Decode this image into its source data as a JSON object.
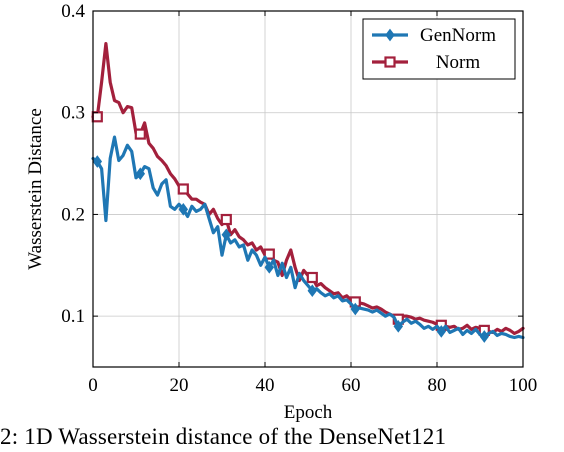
{
  "chart_data": {
    "type": "line",
    "xlabel": "Epoch",
    "ylabel": "Wasserstein Distance",
    "xlim": [
      0,
      100
    ],
    "ylim": [
      0.05,
      0.4
    ],
    "xticks": [
      "0",
      "20",
      "40",
      "60",
      "80",
      "100"
    ],
    "yticks": [
      "0.1",
      "0.2",
      "0.3",
      "0.4"
    ],
    "grid": true,
    "legend_position": "top-right",
    "series": [
      {
        "name": "GenNorm",
        "color": "#1f77b4",
        "marker": "diamond",
        "x": [
          0,
          1,
          2,
          3,
          4,
          5,
          6,
          7,
          8,
          9,
          10,
          11,
          12,
          13,
          14,
          15,
          16,
          17,
          18,
          19,
          20,
          21,
          22,
          23,
          24,
          25,
          26,
          27,
          28,
          29,
          30,
          31,
          32,
          33,
          34,
          35,
          36,
          37,
          38,
          39,
          40,
          41,
          42,
          43,
          44,
          45,
          46,
          47,
          48,
          49,
          50,
          51,
          52,
          53,
          54,
          55,
          56,
          57,
          58,
          59,
          60,
          61,
          62,
          63,
          64,
          65,
          66,
          67,
          68,
          69,
          70,
          71,
          72,
          73,
          74,
          75,
          76,
          77,
          78,
          79,
          80,
          81,
          82,
          83,
          84,
          85,
          86,
          87,
          88,
          89,
          90,
          91,
          92,
          93,
          94,
          95,
          96,
          97,
          98,
          99,
          100
        ],
        "y": [
          0.255,
          0.252,
          0.245,
          0.194,
          0.255,
          0.276,
          0.253,
          0.258,
          0.268,
          0.262,
          0.236,
          0.24,
          0.247,
          0.245,
          0.226,
          0.219,
          0.23,
          0.234,
          0.208,
          0.205,
          0.21,
          0.205,
          0.198,
          0.208,
          0.203,
          0.205,
          0.21,
          0.196,
          0.182,
          0.188,
          0.16,
          0.18,
          0.172,
          0.175,
          0.168,
          0.17,
          0.155,
          0.165,
          0.16,
          0.15,
          0.158,
          0.148,
          0.155,
          0.14,
          0.152,
          0.138,
          0.148,
          0.128,
          0.142,
          0.135,
          0.13,
          0.125,
          0.127,
          0.123,
          0.12,
          0.122,
          0.118,
          0.12,
          0.115,
          0.116,
          0.112,
          0.107,
          0.108,
          0.107,
          0.106,
          0.104,
          0.106,
          0.103,
          0.1,
          0.102,
          0.099,
          0.09,
          0.094,
          0.097,
          0.093,
          0.095,
          0.092,
          0.088,
          0.09,
          0.087,
          0.09,
          0.085,
          0.09,
          0.084,
          0.086,
          0.088,
          0.082,
          0.086,
          0.083,
          0.087,
          0.082,
          0.08,
          0.083,
          0.085,
          0.081,
          0.083,
          0.082,
          0.08,
          0.079,
          0.08,
          0.079
        ],
        "marker_x": [
          1,
          11,
          21,
          31,
          41,
          51,
          61,
          71,
          81,
          91
        ]
      },
      {
        "name": "Norm",
        "color": "#a3203c",
        "marker": "square",
        "x": [
          0,
          1,
          2,
          3,
          4,
          5,
          6,
          7,
          8,
          9,
          10,
          11,
          12,
          13,
          14,
          15,
          16,
          17,
          18,
          19,
          20,
          21,
          22,
          23,
          24,
          25,
          26,
          27,
          28,
          29,
          30,
          31,
          32,
          33,
          34,
          35,
          36,
          37,
          38,
          39,
          40,
          41,
          42,
          43,
          44,
          45,
          46,
          47,
          48,
          49,
          50,
          51,
          52,
          53,
          54,
          55,
          56,
          57,
          58,
          59,
          60,
          61,
          62,
          63,
          64,
          65,
          66,
          67,
          68,
          69,
          70,
          71,
          72,
          73,
          74,
          75,
          76,
          77,
          78,
          79,
          80,
          81,
          82,
          83,
          84,
          85,
          86,
          87,
          88,
          89,
          90,
          91,
          92,
          93,
          94,
          95,
          96,
          97,
          98,
          99,
          100
        ],
        "y": [
          0.296,
          0.296,
          0.33,
          0.368,
          0.33,
          0.312,
          0.31,
          0.3,
          0.306,
          0.305,
          0.28,
          0.279,
          0.29,
          0.27,
          0.265,
          0.257,
          0.253,
          0.248,
          0.24,
          0.235,
          0.228,
          0.225,
          0.22,
          0.215,
          0.215,
          0.212,
          0.21,
          0.2,
          0.205,
          0.196,
          0.19,
          0.195,
          0.18,
          0.185,
          0.178,
          0.175,
          0.17,
          0.172,
          0.165,
          0.168,
          0.16,
          0.161,
          0.155,
          0.153,
          0.14,
          0.155,
          0.165,
          0.148,
          0.135,
          0.145,
          0.14,
          0.138,
          0.13,
          0.132,
          0.128,
          0.125,
          0.122,
          0.123,
          0.118,
          0.12,
          0.116,
          0.114,
          0.113,
          0.112,
          0.11,
          0.108,
          0.109,
          0.107,
          0.104,
          0.102,
          0.1,
          0.097,
          0.1,
          0.1,
          0.099,
          0.097,
          0.098,
          0.096,
          0.095,
          0.094,
          0.092,
          0.091,
          0.09,
          0.089,
          0.09,
          0.087,
          0.088,
          0.091,
          0.087,
          0.089,
          0.088,
          0.086,
          0.085,
          0.084,
          0.087,
          0.085,
          0.088,
          0.086,
          0.083,
          0.085,
          0.088
        ],
        "marker_x": [
          1,
          11,
          21,
          31,
          41,
          51,
          61,
          71,
          81,
          91
        ]
      }
    ]
  },
  "caption": "2: 1D Wasserstein distance of the DenseNet121"
}
